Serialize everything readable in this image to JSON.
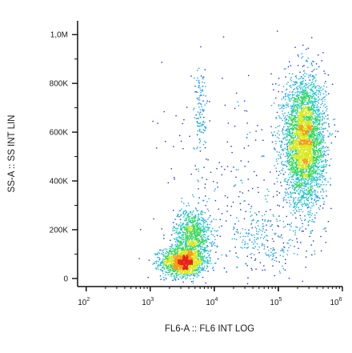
{
  "chart_data": {
    "type": "scatter",
    "style": "density-colored flow cytometry dot plot",
    "xlabel": "FL6-A :: FL6 INT LOG",
    "ylabel": "SS-A :: SS INT LIN",
    "x_scale": "log",
    "y_scale": "linear",
    "xlim": [
      80,
      1000000
    ],
    "ylim": [
      -20000,
      1050000
    ],
    "x_ticks": [
      {
        "value": 100,
        "base": "10",
        "exp": "2"
      },
      {
        "value": 1000,
        "base": "10",
        "exp": "3"
      },
      {
        "value": 10000,
        "base": "10",
        "exp": "4"
      },
      {
        "value": 100000,
        "base": "10",
        "exp": "5"
      },
      {
        "value": 1000000,
        "base": "10",
        "exp": "6"
      }
    ],
    "y_ticks": [
      {
        "value": 0,
        "label": "0"
      },
      {
        "value": 200000,
        "label": "200K"
      },
      {
        "value": 400000,
        "label": "400K"
      },
      {
        "value": 600000,
        "label": "600K"
      },
      {
        "value": 800000,
        "label": "800K"
      },
      {
        "value": 1000000,
        "label": "1,0M"
      }
    ],
    "grid": false,
    "legend": "none",
    "density_colors": [
      "#1f2fd6",
      "#1aa3e8",
      "#19c7c0",
      "#33d65c",
      "#d8e81a",
      "#f79a12",
      "#e8231a"
    ],
    "populations": [
      {
        "x_center": 3200,
        "y_center": 70000,
        "x_spread_decades": 0.17,
        "y_spread": 30000,
        "count": 1500
      },
      {
        "x_center": 4500,
        "y_center": 180000,
        "x_spread_decades": 0.15,
        "y_spread": 55000,
        "count": 900
      },
      {
        "x_center": 250000,
        "y_center": 560000,
        "x_spread_decades": 0.16,
        "y_spread": 130000,
        "count": 3600
      },
      {
        "x_center": 6000,
        "y_center": 700000,
        "x_spread_decades": 0.05,
        "y_spread": 90000,
        "count": 110
      },
      {
        "x_center": 60000,
        "y_center": 160000,
        "x_spread_decades": 0.3,
        "y_spread": 70000,
        "count": 220
      },
      {
        "x_center": 20000,
        "y_center": 400000,
        "x_spread_decades": 0.55,
        "y_spread": 220000,
        "count": 240
      }
    ]
  }
}
